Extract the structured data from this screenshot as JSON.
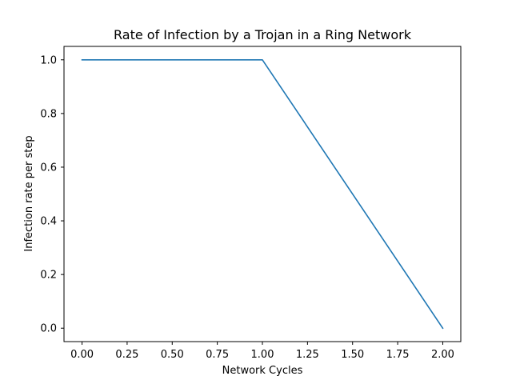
{
  "chart_data": {
    "type": "line",
    "title": "Rate of Infection by a Trojan in a Ring Network",
    "xlabel": "Network Cycles",
    "ylabel": "Infection rate per step",
    "xlim": [
      -0.1,
      2.1
    ],
    "ylim": [
      -0.05,
      1.05
    ],
    "x_ticks": [
      0.0,
      0.25,
      0.5,
      0.75,
      1.0,
      1.25,
      1.5,
      1.75,
      2.0
    ],
    "x_tick_labels": [
      "0.00",
      "0.25",
      "0.50",
      "0.75",
      "1.00",
      "1.25",
      "1.50",
      "1.75",
      "2.00"
    ],
    "y_ticks": [
      0.0,
      0.2,
      0.4,
      0.6,
      0.8,
      1.0
    ],
    "y_tick_labels": [
      "0.0",
      "0.2",
      "0.4",
      "0.6",
      "0.8",
      "1.0"
    ],
    "grid": false,
    "series": [
      {
        "color": "#1f77b4",
        "x": [
          0.0,
          1.0,
          2.0
        ],
        "y": [
          1.0,
          1.0,
          0.0
        ]
      }
    ]
  }
}
